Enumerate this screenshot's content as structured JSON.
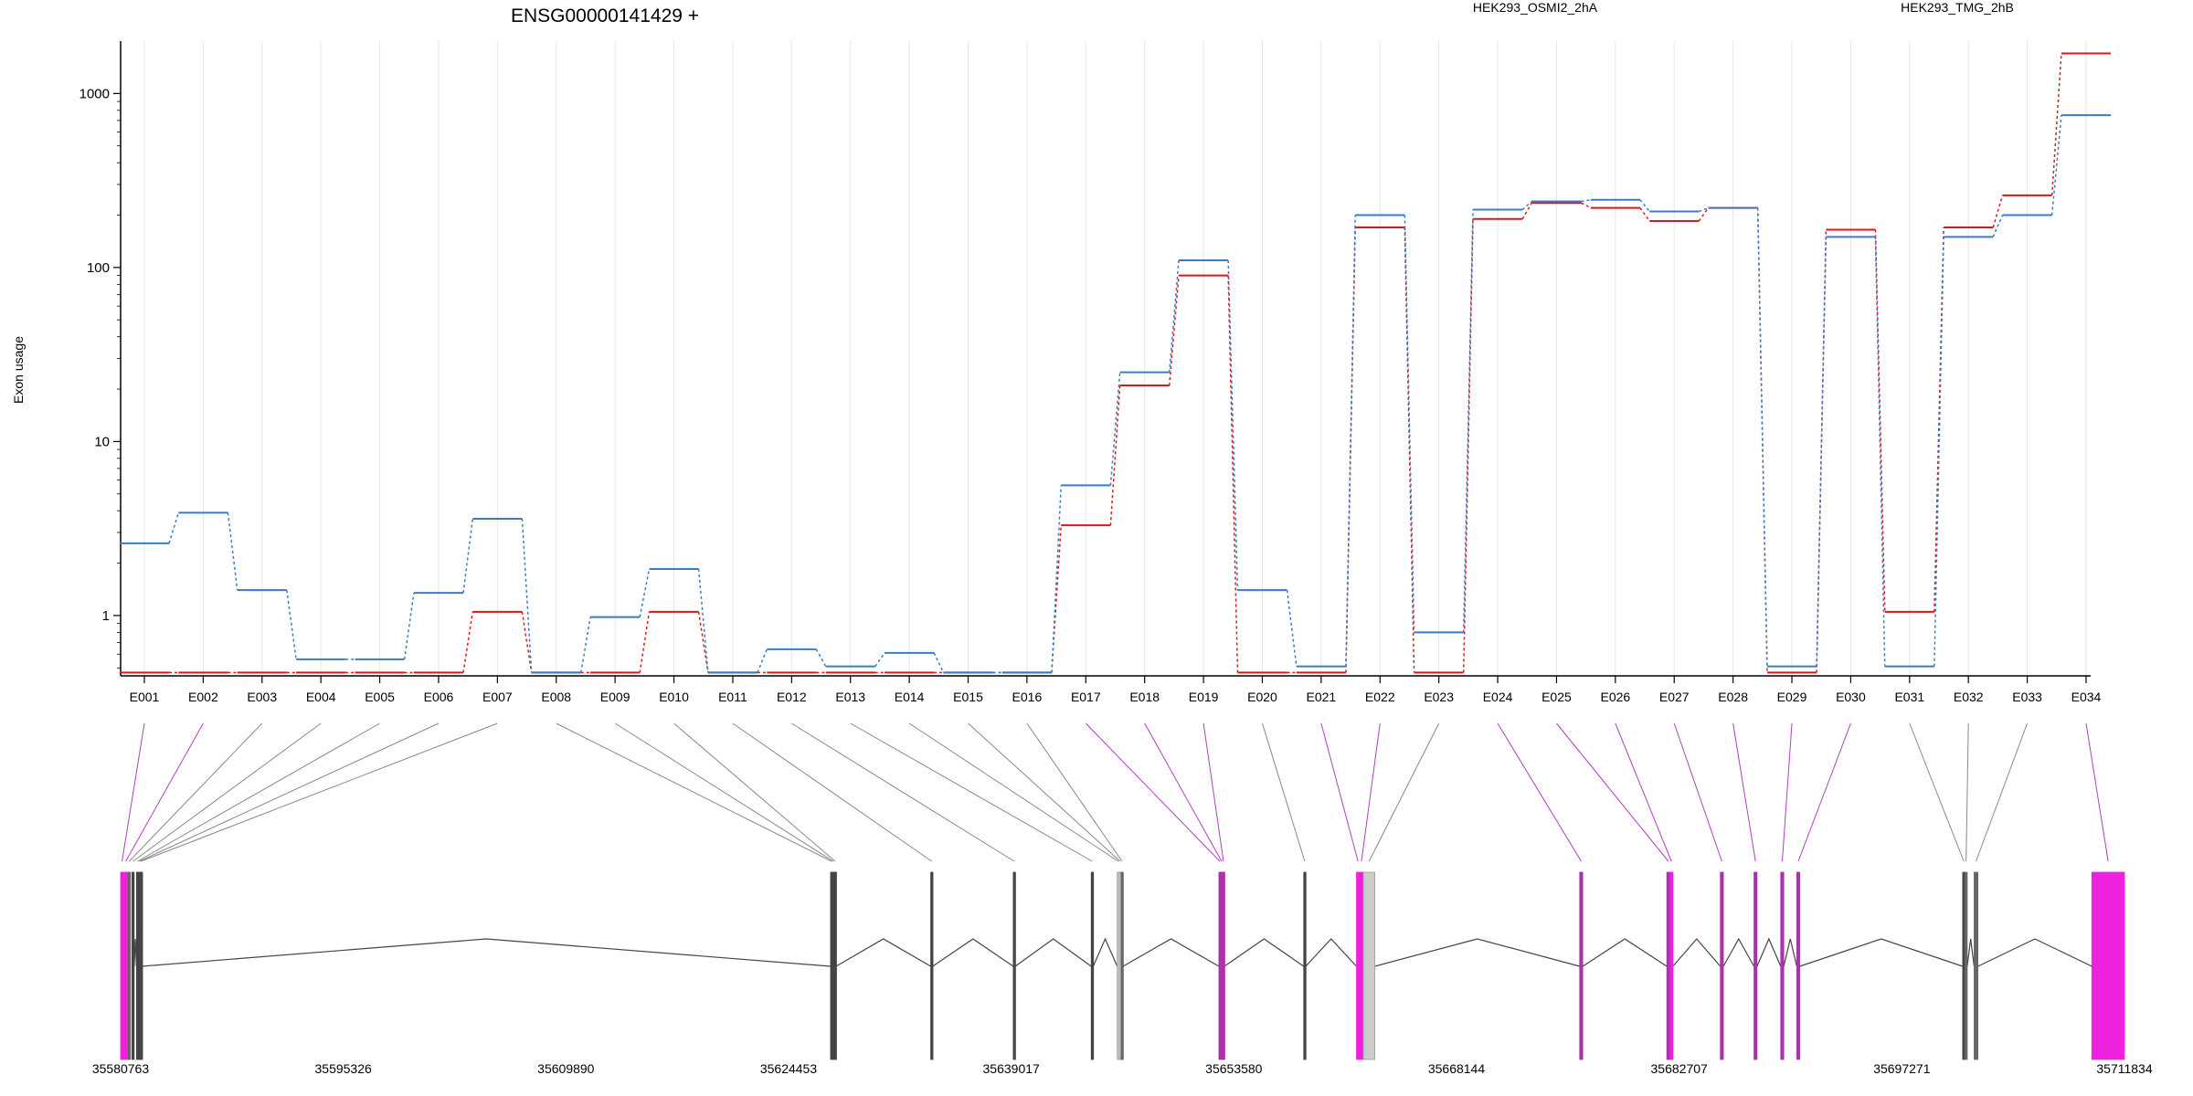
{
  "chart_data": {
    "type": "line",
    "title": "ENSG00000141429 +",
    "ylabel": "Exon usage",
    "y_scale": "log",
    "ylim": [
      0.45,
      2000
    ],
    "y_ticks": [
      {
        "value": 1,
        "label": "1"
      },
      {
        "value": 10,
        "label": "10"
      },
      {
        "value": 100,
        "label": "100"
      },
      {
        "value": 1000,
        "label": "1000"
      }
    ],
    "categories": [
      "E001",
      "E002",
      "E003",
      "E004",
      "E005",
      "E006",
      "E007",
      "E008",
      "E009",
      "E010",
      "E011",
      "E012",
      "E013",
      "E014",
      "E015",
      "E016",
      "E017",
      "E018",
      "E019",
      "E020",
      "E021",
      "E022",
      "E023",
      "E024",
      "E025",
      "E026",
      "E027",
      "E028",
      "E029",
      "E030",
      "E031",
      "E032",
      "E033",
      "E034"
    ],
    "series": [
      {
        "name": "HEK293_OSMI2_2hA",
        "color": "#d7191c",
        "values": [
          0.47,
          0.47,
          0.47,
          0.47,
          0.47,
          0.47,
          1.05,
          0.47,
          0.47,
          1.05,
          0.47,
          0.47,
          0.47,
          0.47,
          0.47,
          0.47,
          3.3,
          21,
          90,
          0.47,
          0.47,
          170,
          0.47,
          190,
          235,
          220,
          185,
          220,
          0.47,
          165,
          1.05,
          170,
          260,
          1700
        ]
      },
      {
        "name": "HEK293_TMG_2hB",
        "color": "#3a7dc4",
        "values": [
          2.6,
          3.9,
          1.4,
          0.56,
          0.56,
          1.35,
          3.6,
          0.47,
          0.98,
          1.85,
          0.47,
          0.64,
          0.51,
          0.61,
          0.47,
          0.47,
          5.6,
          25,
          110,
          1.4,
          0.51,
          200,
          0.8,
          215,
          240,
          245,
          210,
          220,
          0.51,
          150,
          0.51,
          150,
          200,
          750
        ]
      }
    ],
    "genomic_axis": {
      "ticks": [
        {
          "value": 35580763,
          "label": "35580763"
        },
        {
          "value": 35595326,
          "label": "35595326"
        },
        {
          "value": 35609890,
          "label": "35609890"
        },
        {
          "value": 35624453,
          "label": "35624453"
        },
        {
          "value": 35639017,
          "label": "35639017"
        },
        {
          "value": 35653580,
          "label": "35653580"
        },
        {
          "value": 35668144,
          "label": "35668144"
        },
        {
          "value": 35682707,
          "label": "35682707"
        },
        {
          "value": 35697271,
          "label": "35697271"
        },
        {
          "value": 35711834,
          "label": "35711834"
        }
      ],
      "exons": [
        {
          "id": "E001",
          "start": 35580763,
          "end": 35580950,
          "color": "#ee22dd"
        },
        {
          "id": "E002",
          "start": 35580950,
          "end": 35581250,
          "color": "#ee22dd"
        },
        {
          "id": "E003",
          "start": 35581250,
          "end": 35581400,
          "color": "#666666"
        },
        {
          "id": "E004",
          "start": 35581500,
          "end": 35581650,
          "color": "#444444"
        },
        {
          "id": "E005",
          "start": 35581800,
          "end": 35581950,
          "color": "#444444"
        },
        {
          "id": "E006",
          "start": 35581950,
          "end": 35582050,
          "color": "#444444"
        },
        {
          "id": "E007",
          "start": 35582050,
          "end": 35582150,
          "color": "#444444"
        },
        {
          "id": "E008",
          "start": 35627200,
          "end": 35627320,
          "color": "#444444"
        },
        {
          "id": "E009",
          "start": 35627320,
          "end": 35627440,
          "color": "#444444"
        },
        {
          "id": "E010",
          "start": 35627440,
          "end": 35627560,
          "color": "#444444"
        },
        {
          "id": "E011",
          "start": 35633750,
          "end": 35633880,
          "color": "#444444"
        },
        {
          "id": "E012",
          "start": 35639150,
          "end": 35639280,
          "color": "#444444"
        },
        {
          "id": "E013",
          "start": 35644250,
          "end": 35644380,
          "color": "#444444"
        },
        {
          "id": "E014",
          "start": 35645950,
          "end": 35646080,
          "color": "#cccccc"
        },
        {
          "id": "E015",
          "start": 35646080,
          "end": 35646200,
          "color": "#cccccc"
        },
        {
          "id": "E016",
          "start": 35646200,
          "end": 35646330,
          "color": "#666666"
        },
        {
          "id": "E017",
          "start": 35652600,
          "end": 35652720,
          "color": "#aa33aa"
        },
        {
          "id": "E018",
          "start": 35652720,
          "end": 35652840,
          "color": "#aa33aa"
        },
        {
          "id": "E019",
          "start": 35652840,
          "end": 35652960,
          "color": "#aa33aa"
        },
        {
          "id": "E020",
          "start": 35658150,
          "end": 35658280,
          "color": "#444444"
        },
        {
          "id": "E021",
          "start": 35661600,
          "end": 35661800,
          "color": "#ee22dd"
        },
        {
          "id": "E022",
          "start": 35661800,
          "end": 35662050,
          "color": "#ee22dd"
        },
        {
          "id": "E023",
          "start": 35662050,
          "end": 35662800,
          "color": "#cccccc"
        },
        {
          "id": "E024",
          "start": 35676200,
          "end": 35676400,
          "color": "#aa33aa"
        },
        {
          "id": "E025",
          "start": 35681900,
          "end": 35682100,
          "color": "#aa33aa"
        },
        {
          "id": "E026",
          "start": 35682100,
          "end": 35682300,
          "color": "#ee22dd"
        },
        {
          "id": "E027",
          "start": 35685400,
          "end": 35685600,
          "color": "#aa33aa"
        },
        {
          "id": "E028",
          "start": 35687600,
          "end": 35687800,
          "color": "#aa33aa"
        },
        {
          "id": "E029",
          "start": 35689350,
          "end": 35689550,
          "color": "#aa33aa"
        },
        {
          "id": "E030",
          "start": 35690400,
          "end": 35690600,
          "color": "#aa33aa"
        },
        {
          "id": "E031",
          "start": 35701250,
          "end": 35701400,
          "color": "#444444"
        },
        {
          "id": "E032",
          "start": 35701400,
          "end": 35701550,
          "color": "#666666"
        },
        {
          "id": "E033",
          "start": 35702000,
          "end": 35702250,
          "color": "#666666"
        },
        {
          "id": "E034",
          "start": 35709700,
          "end": 35711834,
          "color": "#ee22dd"
        }
      ]
    }
  }
}
